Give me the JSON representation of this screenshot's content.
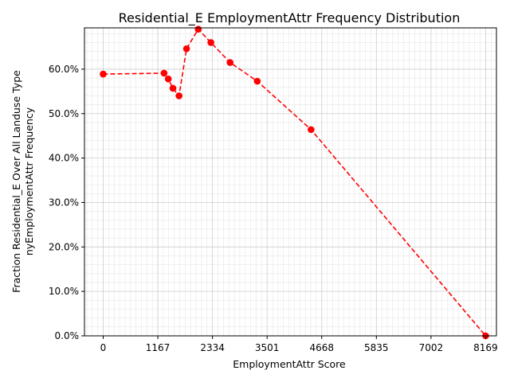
{
  "chart_data": {
    "type": "line",
    "title": "Residential_E EmploymentAttr Frequency Distribution",
    "xlabel": "EmploymentAttr Score",
    "ylabel_lines": [
      "Fraction Residential_E Over All Landuse Type",
      "nyEmploymentAttr Frequency"
    ],
    "xlim": [
      -400,
      8400
    ],
    "ylim": [
      0,
      0.693
    ],
    "xticks": [
      0,
      1167,
      2334,
      3501,
      4668,
      5835,
      7002,
      8169
    ],
    "xtick_labels": [
      "0",
      "1167",
      "2334",
      "3501",
      "4668",
      "5835",
      "7002",
      "8169"
    ],
    "yticks": [
      0,
      0.1,
      0.2,
      0.3,
      0.4,
      0.5,
      0.6
    ],
    "ytick_labels": [
      "0.0%",
      "10.0%",
      "20.0%",
      "30.0%",
      "40.0%",
      "50.0%",
      "60.0%"
    ],
    "grid": true,
    "minor_grid": true,
    "series": [
      {
        "color": "#ff0000",
        "linestyle": "dashed",
        "marker": "circle",
        "x": [
          0,
          1300,
          1390,
          1490,
          1620,
          1780,
          2030,
          2300,
          2710,
          3290,
          4440,
          8169
        ],
        "y": [
          0.589,
          0.591,
          0.578,
          0.557,
          0.54,
          0.646,
          0.69,
          0.66,
          0.615,
          0.573,
          0.464,
          0.0
        ]
      }
    ]
  }
}
